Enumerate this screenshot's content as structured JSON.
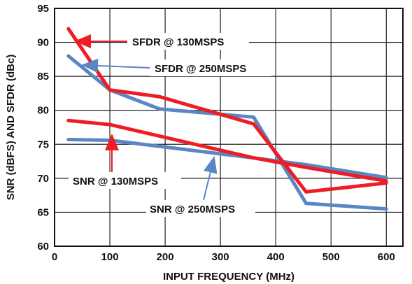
{
  "chart_data": {
    "type": "line",
    "xlabel": "INPUT FREQUENCY (MHz)",
    "ylabel": "SNR (dBFS) AND SFDR (dBc)",
    "xlim": [
      0,
      630
    ],
    "ylim": [
      60,
      95
    ],
    "x_ticks": [
      0,
      100,
      200,
      300,
      400,
      500,
      600
    ],
    "y_ticks": [
      60,
      65,
      70,
      75,
      80,
      85,
      90,
      95
    ],
    "grid": true,
    "series": [
      {
        "name": "SFDR @ 130MSPS",
        "color": "#ee1c24",
        "x": [
          25,
          100,
          190,
          360,
          455,
          600
        ],
        "y": [
          92,
          83,
          82,
          78,
          68,
          69.3
        ]
      },
      {
        "name": "SFDR @ 250MSPS",
        "color": "#5a86c4",
        "x": [
          25,
          100,
          190,
          360,
          455,
          600
        ],
        "y": [
          88,
          83,
          80.2,
          79,
          66.3,
          65.5
        ]
      },
      {
        "name": "SNR @ 130MSPS",
        "color": "#ee1c24",
        "x": [
          25,
          100,
          360,
          455,
          600
        ],
        "y": [
          78.5,
          77.9,
          73,
          71.6,
          69.6
        ]
      },
      {
        "name": "SNR @ 250MSPS",
        "color": "#5a86c4",
        "x": [
          25,
          100,
          360,
          455,
          600
        ],
        "y": [
          75.7,
          75.6,
          73,
          72,
          70.1
        ]
      }
    ]
  }
}
